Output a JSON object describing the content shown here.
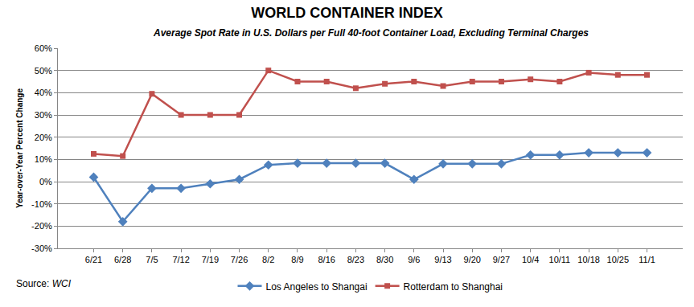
{
  "chart_data": {
    "type": "line",
    "title": "WORLD CONTAINER INDEX",
    "subtitle": "Average Spot Rate in U.S. Dollars per Full 40-foot Container Load, Excluding Terminal Charges",
    "y_label": "Year-over-Year Percent Change",
    "source_label": "Source:",
    "source_name": "WCI",
    "categories": [
      "6/21",
      "6/28",
      "7/5",
      "7/12",
      "7/19",
      "7/26",
      "8/2",
      "8/9",
      "8/16",
      "8/23",
      "8/30",
      "9/6",
      "9/13",
      "9/20",
      "9/27",
      "10/4",
      "10/11",
      "10/18",
      "10/25",
      "11/1"
    ],
    "series": [
      {
        "name": "Los Angeles to Shangai",
        "color": "#4f81bd",
        "marker": "diamond",
        "line_style": "solid",
        "values": [
          2,
          -18,
          -3,
          -3,
          -1,
          1,
          7.5,
          8.3,
          8.3,
          8.3,
          8.3,
          1,
          8,
          8,
          8,
          12,
          12,
          13,
          13,
          13
        ]
      },
      {
        "name": "Rotterdam to Shanghai",
        "color": "#c0504d",
        "marker": "square",
        "line_style": "solid",
        "values": [
          12.5,
          11.5,
          39.5,
          30,
          30,
          30,
          50,
          45,
          45,
          42,
          44,
          45,
          43,
          45,
          45,
          46,
          45,
          49,
          48,
          48
        ]
      }
    ],
    "ylim": [
      -30,
      60
    ],
    "yticks": [
      {
        "value": -30,
        "label": "-30%"
      },
      {
        "value": -20,
        "label": "-20%"
      },
      {
        "value": -10,
        "label": "-10%"
      },
      {
        "value": 0,
        "label": "0%"
      },
      {
        "value": 10,
        "label": "10%"
      },
      {
        "value": 20,
        "label": "20%"
      },
      {
        "value": 30,
        "label": "30%"
      },
      {
        "value": 40,
        "label": "40%"
      },
      {
        "value": 50,
        "label": "50%"
      },
      {
        "value": 60,
        "label": "60%"
      }
    ],
    "grid": true,
    "legend": "bottom"
  }
}
